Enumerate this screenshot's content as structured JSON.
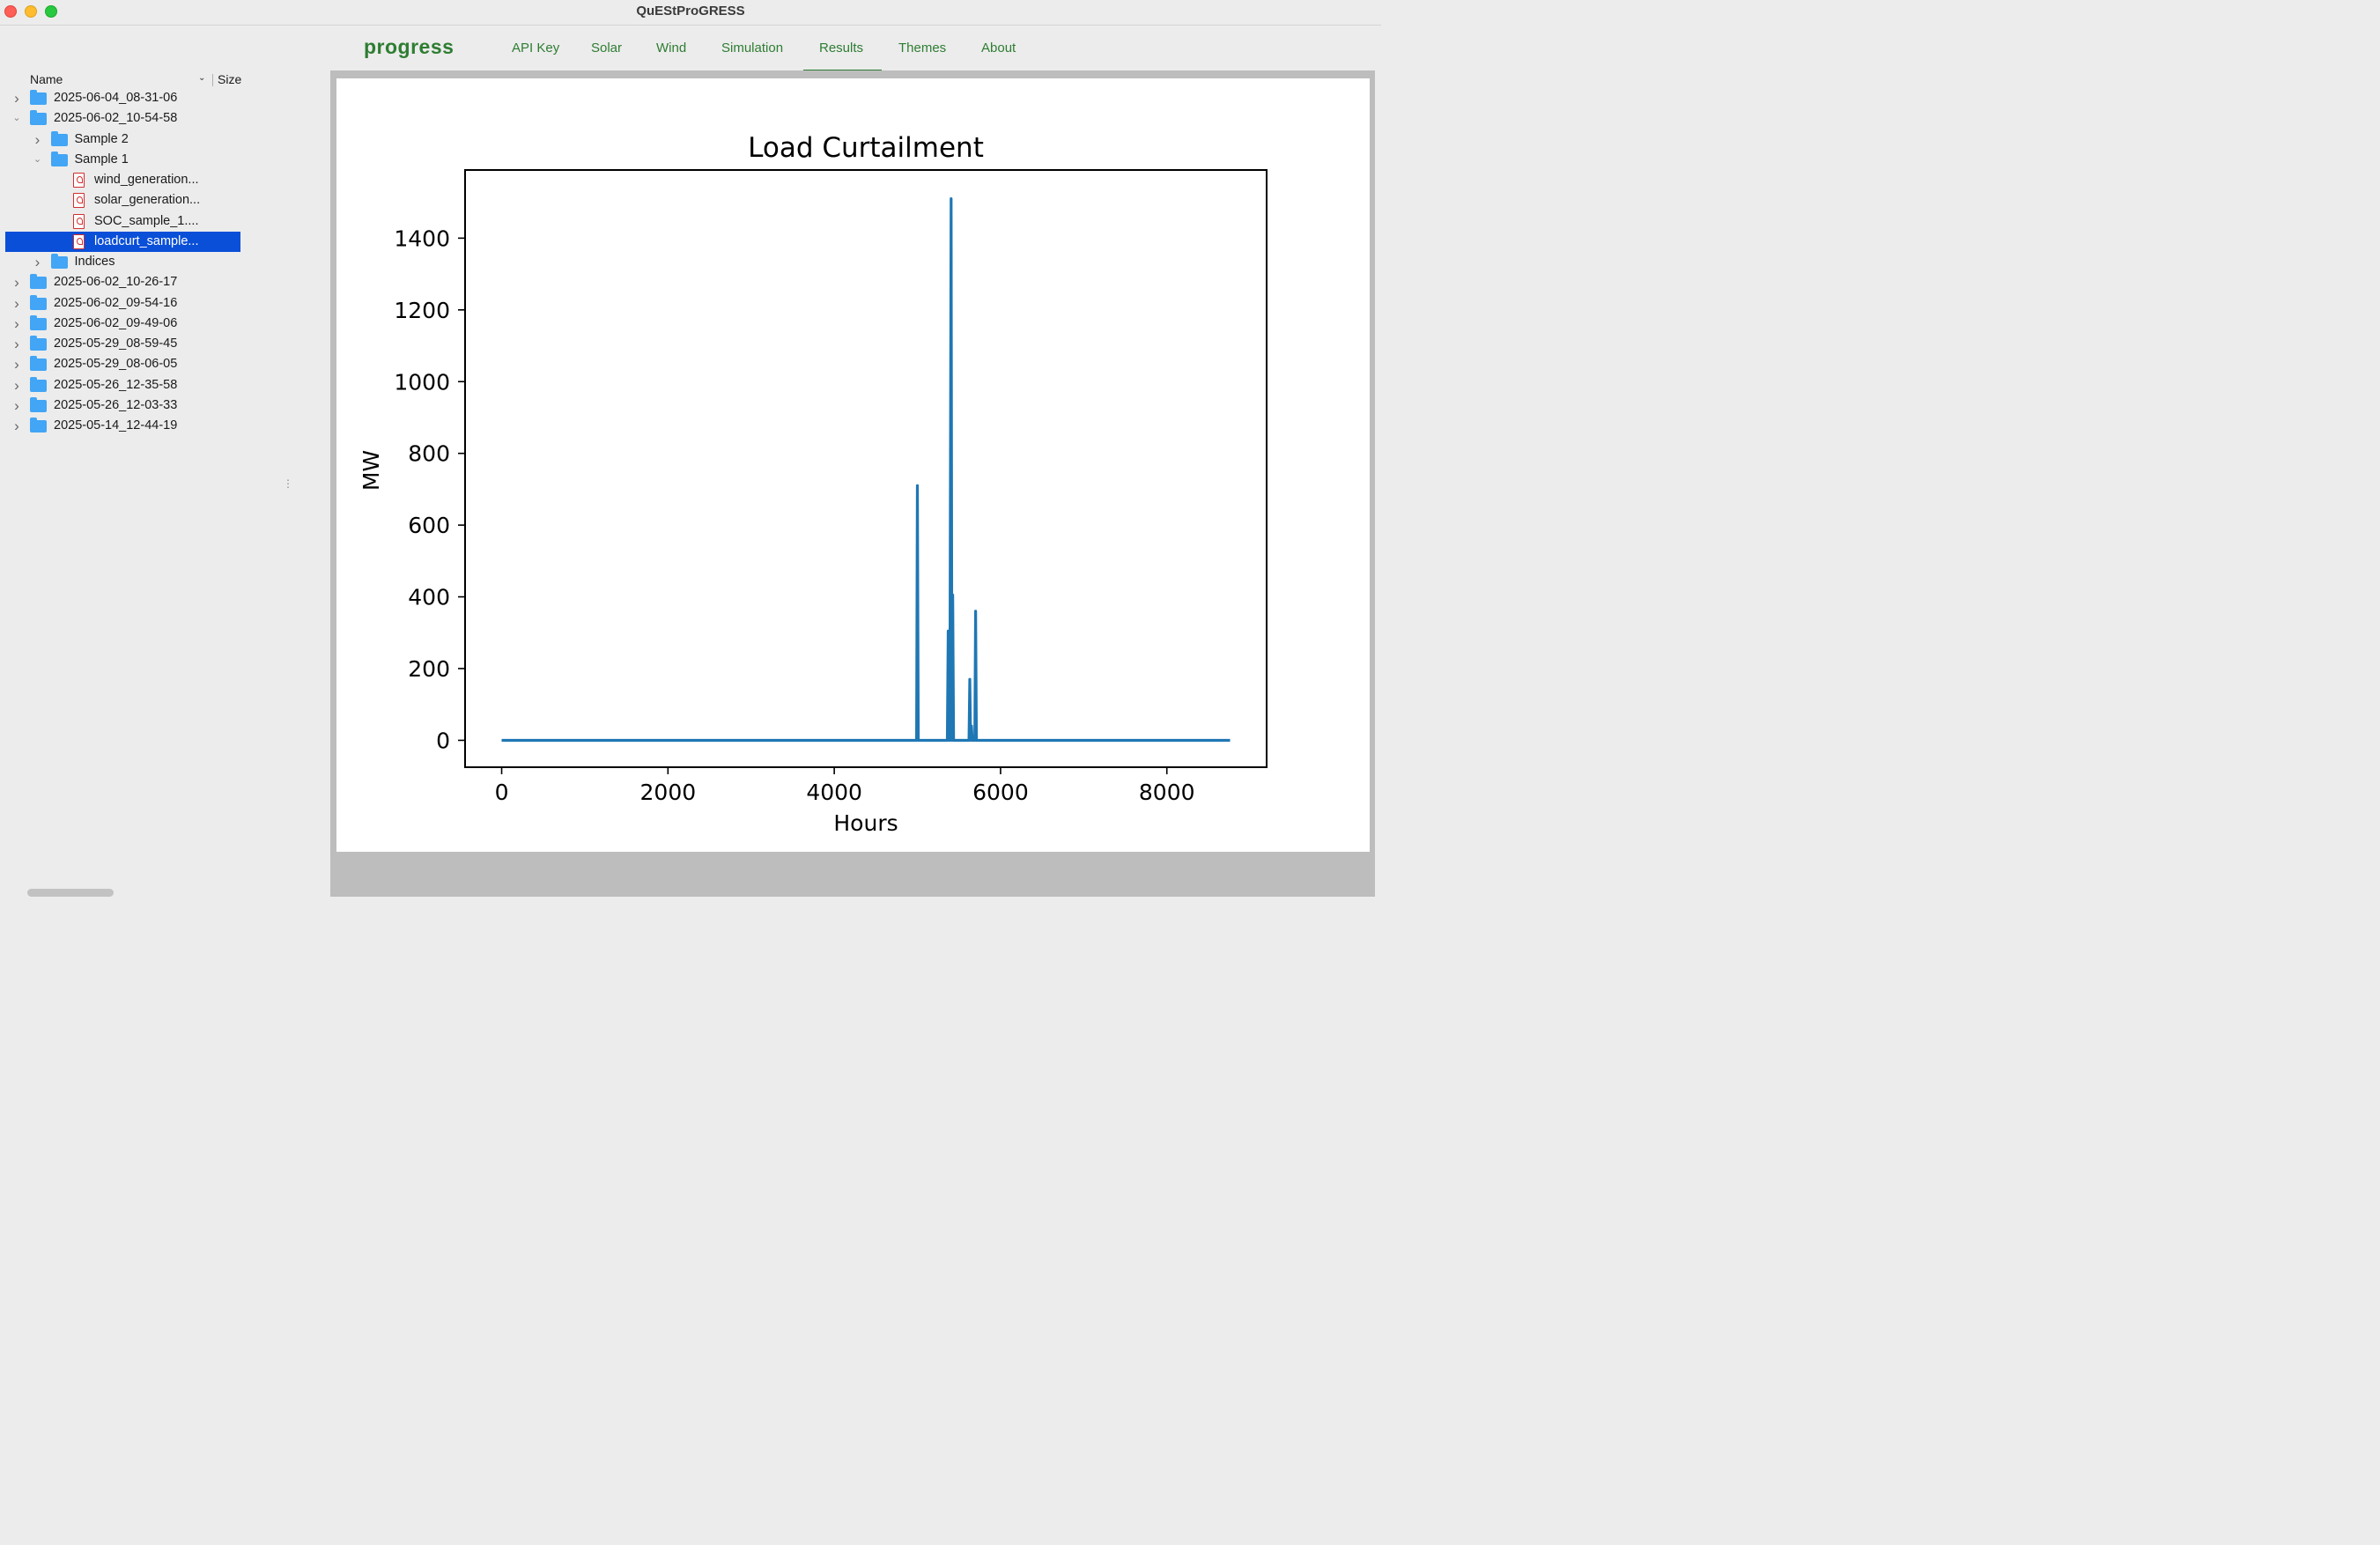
{
  "window": {
    "title": "QuEStProGRESS"
  },
  "app": {
    "logo_text": "progress"
  },
  "nav": {
    "tabs": [
      {
        "label": "API Key"
      },
      {
        "label": "Solar"
      },
      {
        "label": "Wind"
      },
      {
        "label": "Simulation"
      },
      {
        "label": "Results",
        "active": true
      },
      {
        "label": "Themes"
      },
      {
        "label": "About"
      }
    ]
  },
  "sidebar": {
    "columns": {
      "name": "Name",
      "size": "Size"
    },
    "tree": [
      {
        "label": "2025-06-04_08-31-06",
        "type": "folder",
        "expanded": false
      },
      {
        "label": "2025-06-02_10-54-58",
        "type": "folder",
        "expanded": true
      },
      {
        "label": "Sample 2",
        "type": "folder",
        "expanded": false
      },
      {
        "label": "Sample 1",
        "type": "folder",
        "expanded": true
      },
      {
        "label": "wind_generation...",
        "type": "pdf"
      },
      {
        "label": "solar_generation...",
        "type": "pdf"
      },
      {
        "label": "SOC_sample_1....",
        "type": "pdf"
      },
      {
        "label": "loadcurt_sample...",
        "type": "pdf",
        "selected": true
      },
      {
        "label": "Indices",
        "type": "folder",
        "expanded": false
      },
      {
        "label": "2025-06-02_10-26-17",
        "type": "folder",
        "expanded": false
      },
      {
        "label": "2025-06-02_09-54-16",
        "type": "folder",
        "expanded": false
      },
      {
        "label": "2025-06-02_09-49-06",
        "type": "folder",
        "expanded": false
      },
      {
        "label": "2025-05-29_08-59-45",
        "type": "folder",
        "expanded": false
      },
      {
        "label": "2025-05-29_08-06-05",
        "type": "folder",
        "expanded": false
      },
      {
        "label": "2025-05-26_12-35-58",
        "type": "folder",
        "expanded": false
      },
      {
        "label": "2025-05-26_12-03-33",
        "type": "folder",
        "expanded": false
      },
      {
        "label": "2025-05-14_12-44-19",
        "type": "folder",
        "expanded": false
      }
    ]
  },
  "colors": {
    "accent": "#2e7d32",
    "selection": "#0a4fd8",
    "line": "#1f77b4"
  },
  "chart_data": {
    "type": "line",
    "title": "Load Curtailment",
    "xlabel": "Hours",
    "ylabel": "MW",
    "xlim": [
      -440,
      9200
    ],
    "ylim": [
      -75,
      1590
    ],
    "xticks": [
      0,
      2000,
      4000,
      6000,
      8000
    ],
    "yticks": [
      0,
      200,
      400,
      600,
      800,
      1000,
      1200,
      1400
    ],
    "grid": false,
    "series": [
      {
        "x": [
          0,
          4990,
          5000,
          5010,
          5020,
          5360,
          5370,
          5380,
          5390,
          5405,
          5415,
          5425,
          5435,
          5445,
          5460,
          5620,
          5630,
          5640,
          5650,
          5660,
          5670,
          5690,
          5700,
          5710,
          5720,
          8760
        ],
        "y": [
          0,
          0,
          710,
          0,
          0,
          0,
          305,
          0,
          0,
          1510,
          0,
          405,
          0,
          0,
          0,
          0,
          170,
          0,
          40,
          0,
          0,
          0,
          360,
          0,
          0,
          0
        ]
      }
    ]
  }
}
